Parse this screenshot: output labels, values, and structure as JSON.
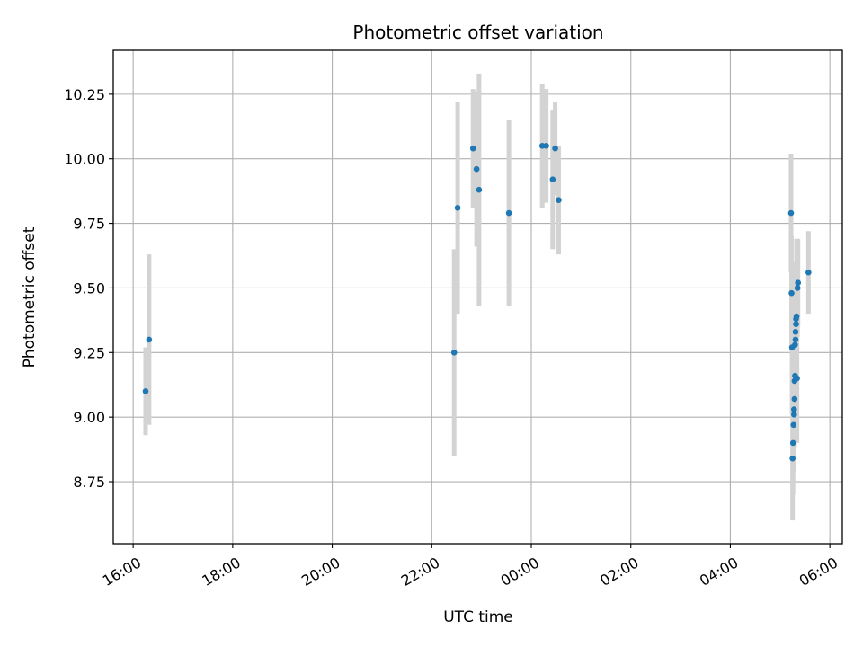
{
  "chart_data": {
    "type": "scatter",
    "title": "Photometric offset variation",
    "xlabel": "UTC time",
    "ylabel": "Photometric offset",
    "x_unit": "hours since 16:00 UTC (time axis)",
    "x_ticks": [
      {
        "value": 0,
        "label": "16:00"
      },
      {
        "value": 2,
        "label": "18:00"
      },
      {
        "value": 4,
        "label": "20:00"
      },
      {
        "value": 6,
        "label": "22:00"
      },
      {
        "value": 8,
        "label": "00:00"
      },
      {
        "value": 10,
        "label": "02:00"
      },
      {
        "value": 12,
        "label": "04:00"
      },
      {
        "value": 14,
        "label": "06:00"
      }
    ],
    "y_ticks": [
      8.75,
      9.0,
      9.25,
      9.5,
      9.75,
      10.0,
      10.25
    ],
    "xlim": [
      -0.4,
      14.25
    ],
    "ylim": [
      8.51,
      10.42
    ],
    "grid": true,
    "marker_color": "#1f77b4",
    "errorbar_color": "#d3d3d3",
    "points": [
      {
        "x": 0.25,
        "y": 9.1,
        "err": 0.17
      },
      {
        "x": 0.32,
        "y": 9.3,
        "err": 0.33
      },
      {
        "x": 6.45,
        "y": 9.25,
        "err": 0.4
      },
      {
        "x": 6.52,
        "y": 9.81,
        "err": 0.41
      },
      {
        "x": 6.83,
        "y": 10.04,
        "err": 0.23
      },
      {
        "x": 6.9,
        "y": 9.96,
        "err": 0.3
      },
      {
        "x": 6.95,
        "y": 9.88,
        "err": 0.45
      },
      {
        "x": 7.55,
        "y": 9.79,
        "err": 0.36
      },
      {
        "x": 8.22,
        "y": 10.05,
        "err": 0.24
      },
      {
        "x": 8.3,
        "y": 10.05,
        "err": 0.22
      },
      {
        "x": 8.43,
        "y": 9.92,
        "err": 0.27
      },
      {
        "x": 8.48,
        "y": 10.04,
        "err": 0.18
      },
      {
        "x": 8.55,
        "y": 9.84,
        "err": 0.21
      },
      {
        "x": 13.22,
        "y": 9.79,
        "err": 0.23
      },
      {
        "x": 13.23,
        "y": 9.48,
        "err": 0.22
      },
      {
        "x": 13.24,
        "y": 9.27,
        "err": 0.26
      },
      {
        "x": 13.25,
        "y": 8.84,
        "err": 0.24
      },
      {
        "x": 13.26,
        "y": 8.9,
        "err": 0.2
      },
      {
        "x": 13.27,
        "y": 8.97,
        "err": 0.18
      },
      {
        "x": 13.28,
        "y": 9.01,
        "err": 0.21
      },
      {
        "x": 13.28,
        "y": 9.03,
        "err": 0.2
      },
      {
        "x": 13.29,
        "y": 9.07,
        "err": 0.19
      },
      {
        "x": 13.29,
        "y": 9.14,
        "err": 0.22
      },
      {
        "x": 13.3,
        "y": 9.16,
        "err": 0.2
      },
      {
        "x": 13.3,
        "y": 9.28,
        "err": 0.18
      },
      {
        "x": 13.31,
        "y": 9.3,
        "err": 0.2
      },
      {
        "x": 13.31,
        "y": 9.33,
        "err": 0.2
      },
      {
        "x": 13.32,
        "y": 9.36,
        "err": 0.22
      },
      {
        "x": 13.32,
        "y": 9.38,
        "err": 0.22
      },
      {
        "x": 13.33,
        "y": 9.39,
        "err": 0.3
      },
      {
        "x": 13.34,
        "y": 9.15,
        "err": 0.25
      },
      {
        "x": 13.35,
        "y": 9.5,
        "err": 0.19
      },
      {
        "x": 13.36,
        "y": 9.52,
        "err": 0.17
      },
      {
        "x": 13.57,
        "y": 9.56,
        "err": 0.16
      }
    ]
  }
}
